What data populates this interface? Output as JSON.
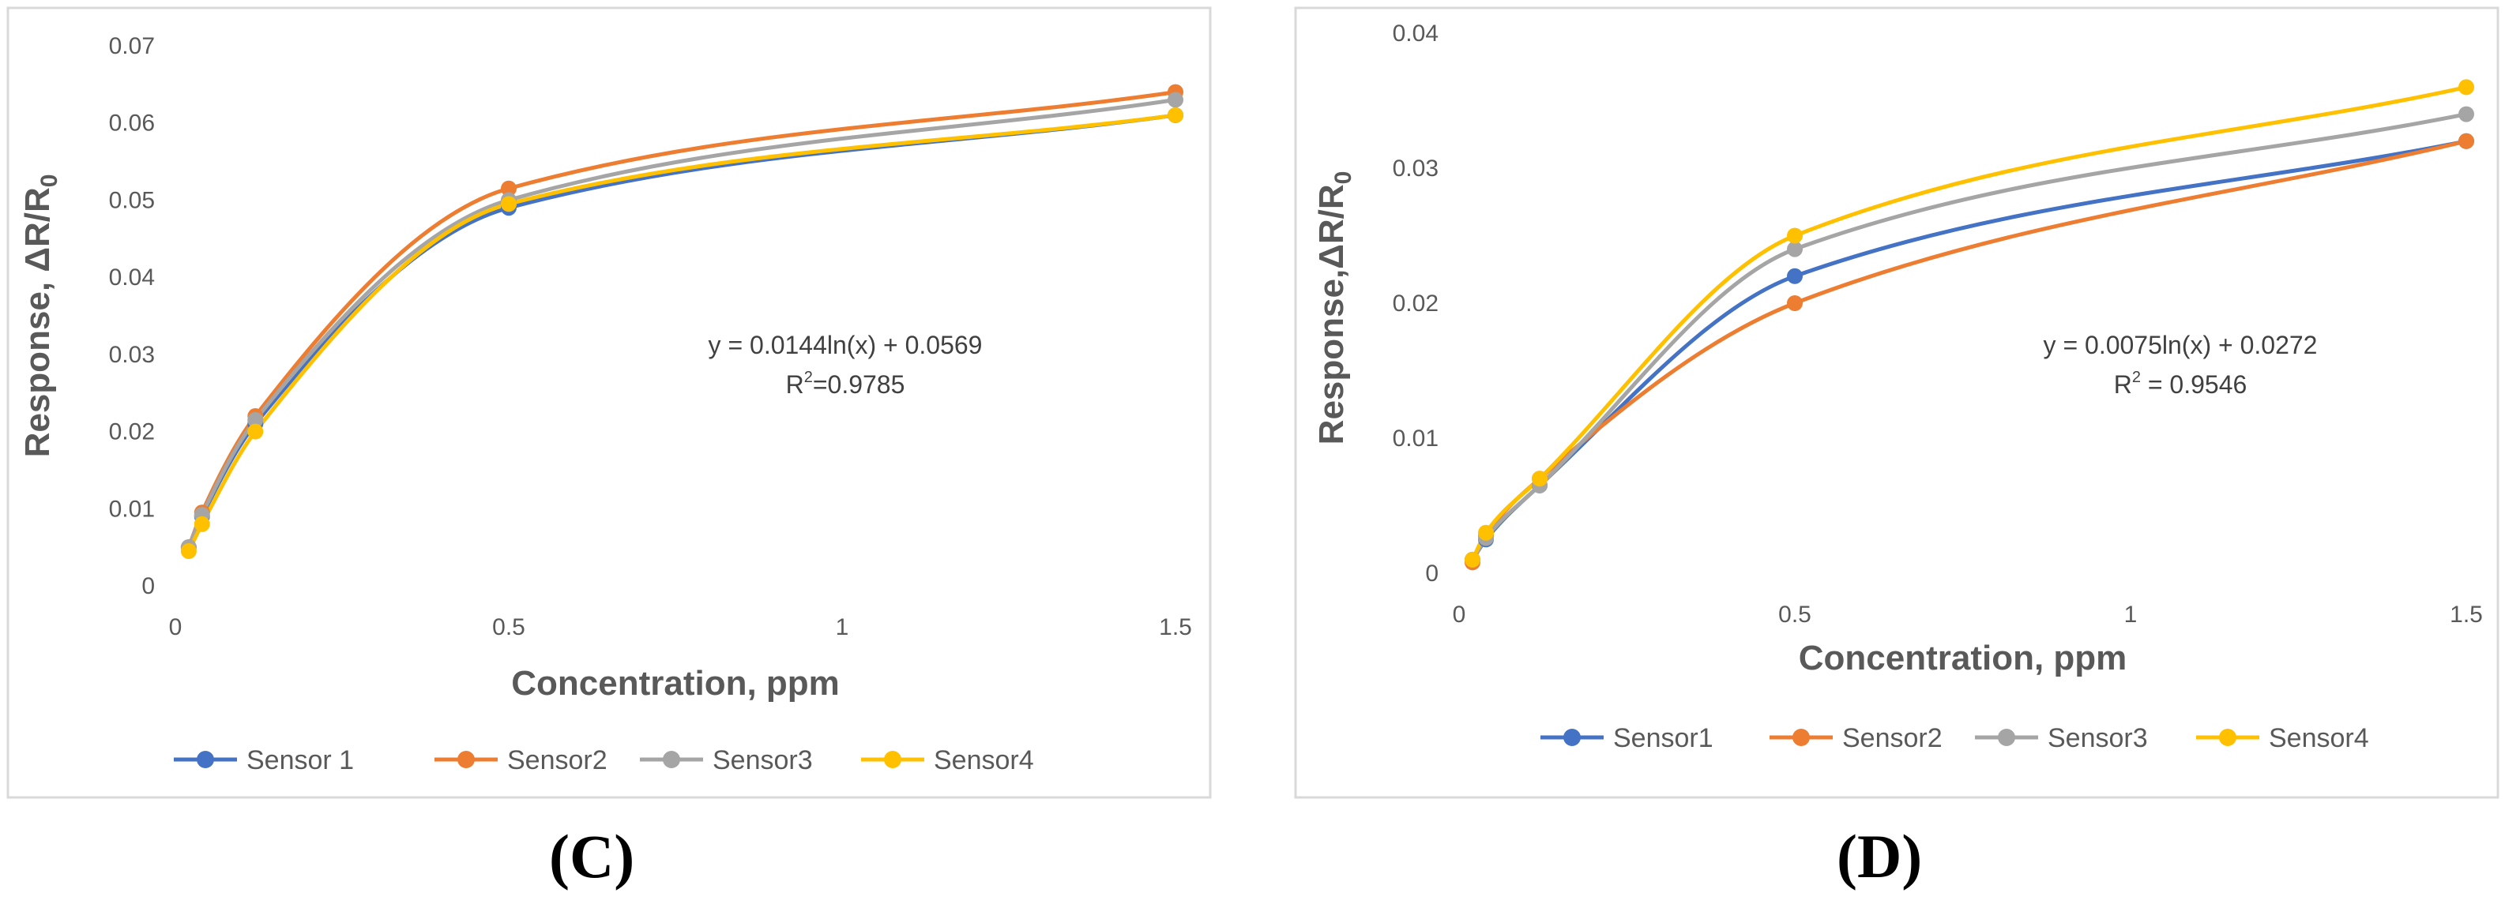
{
  "colors": {
    "sensor1": "#4472C4",
    "sensor2": "#ED7D31",
    "sensor3": "#A5A5A5",
    "sensor4": "#FFC000",
    "frame": "#D9D9D9",
    "tick_text": "#595959",
    "axis_title": "#595959"
  },
  "chart_data": [
    {
      "type": "line",
      "panel_label": "(C)",
      "title": "",
      "xlabel": "Concentration, ppm",
      "ylabel": "Response, ΔR/R",
      "ylabel_subscript": "0",
      "xlim": [
        0,
        1.5
      ],
      "ylim": [
        0,
        0.07
      ],
      "x_ticks": [
        "0",
        "0.5",
        "1",
        "1.5"
      ],
      "y_ticks": [
        "0",
        "0.01",
        "0.02",
        "0.03",
        "0.04",
        "0.05",
        "0.06",
        "0.07"
      ],
      "grid": false,
      "legend_position": "bottom",
      "annotation": {
        "equation": "y = 0.0144ln(x) + 0.0569",
        "r2_prefix": "R",
        "r2_exponent": "2",
        "r2_value": "=0.9785"
      },
      "x": [
        0.02,
        0.04,
        0.12,
        0.5,
        1.5
      ],
      "series": [
        {
          "name": "Sensor 1",
          "color_key": "sensor1",
          "values": [
            0.005,
            0.009,
            0.021,
            0.049,
            0.061
          ]
        },
        {
          "name": "Sensor2",
          "color_key": "sensor2",
          "values": [
            0.005,
            0.0095,
            0.022,
            0.0515,
            0.064
          ]
        },
        {
          "name": "Sensor3",
          "color_key": "sensor3",
          "values": [
            0.005,
            0.0092,
            0.0215,
            0.05,
            0.063
          ]
        },
        {
          "name": "Sensor4",
          "color_key": "sensor4",
          "values": [
            0.0045,
            0.008,
            0.02,
            0.0495,
            0.061
          ]
        }
      ]
    },
    {
      "type": "line",
      "panel_label": "(D)",
      "title": "",
      "xlabel": "Concentration, ppm",
      "ylabel": "Response,ΔR/R",
      "ylabel_subscript": "0",
      "xlim": [
        0,
        1.5
      ],
      "ylim": [
        0,
        0.04
      ],
      "x_ticks": [
        "0",
        "0.5",
        "1",
        "1.5"
      ],
      "y_ticks": [
        "0",
        "0.01",
        "0.02",
        "0.03",
        "0.04"
      ],
      "grid": false,
      "legend_position": "bottom",
      "annotation": {
        "equation": "y = 0.0075ln(x) + 0.0272",
        "r2_prefix": "R",
        "r2_exponent": "2",
        "r2_value": " = 0.9546"
      },
      "x": [
        0.02,
        0.04,
        0.12,
        0.5,
        1.5
      ],
      "series": [
        {
          "name": "Sensor1",
          "color_key": "sensor1",
          "values": [
            0.001,
            0.0025,
            0.0065,
            0.022,
            0.032
          ]
        },
        {
          "name": "Sensor2",
          "color_key": "sensor2",
          "values": [
            0.0008,
            0.0028,
            0.007,
            0.02,
            0.032
          ]
        },
        {
          "name": "Sensor3",
          "color_key": "sensor3",
          "values": [
            0.001,
            0.0026,
            0.0065,
            0.024,
            0.034
          ]
        },
        {
          "name": "Sensor4",
          "color_key": "sensor4",
          "values": [
            0.001,
            0.003,
            0.007,
            0.025,
            0.036
          ]
        }
      ]
    }
  ]
}
